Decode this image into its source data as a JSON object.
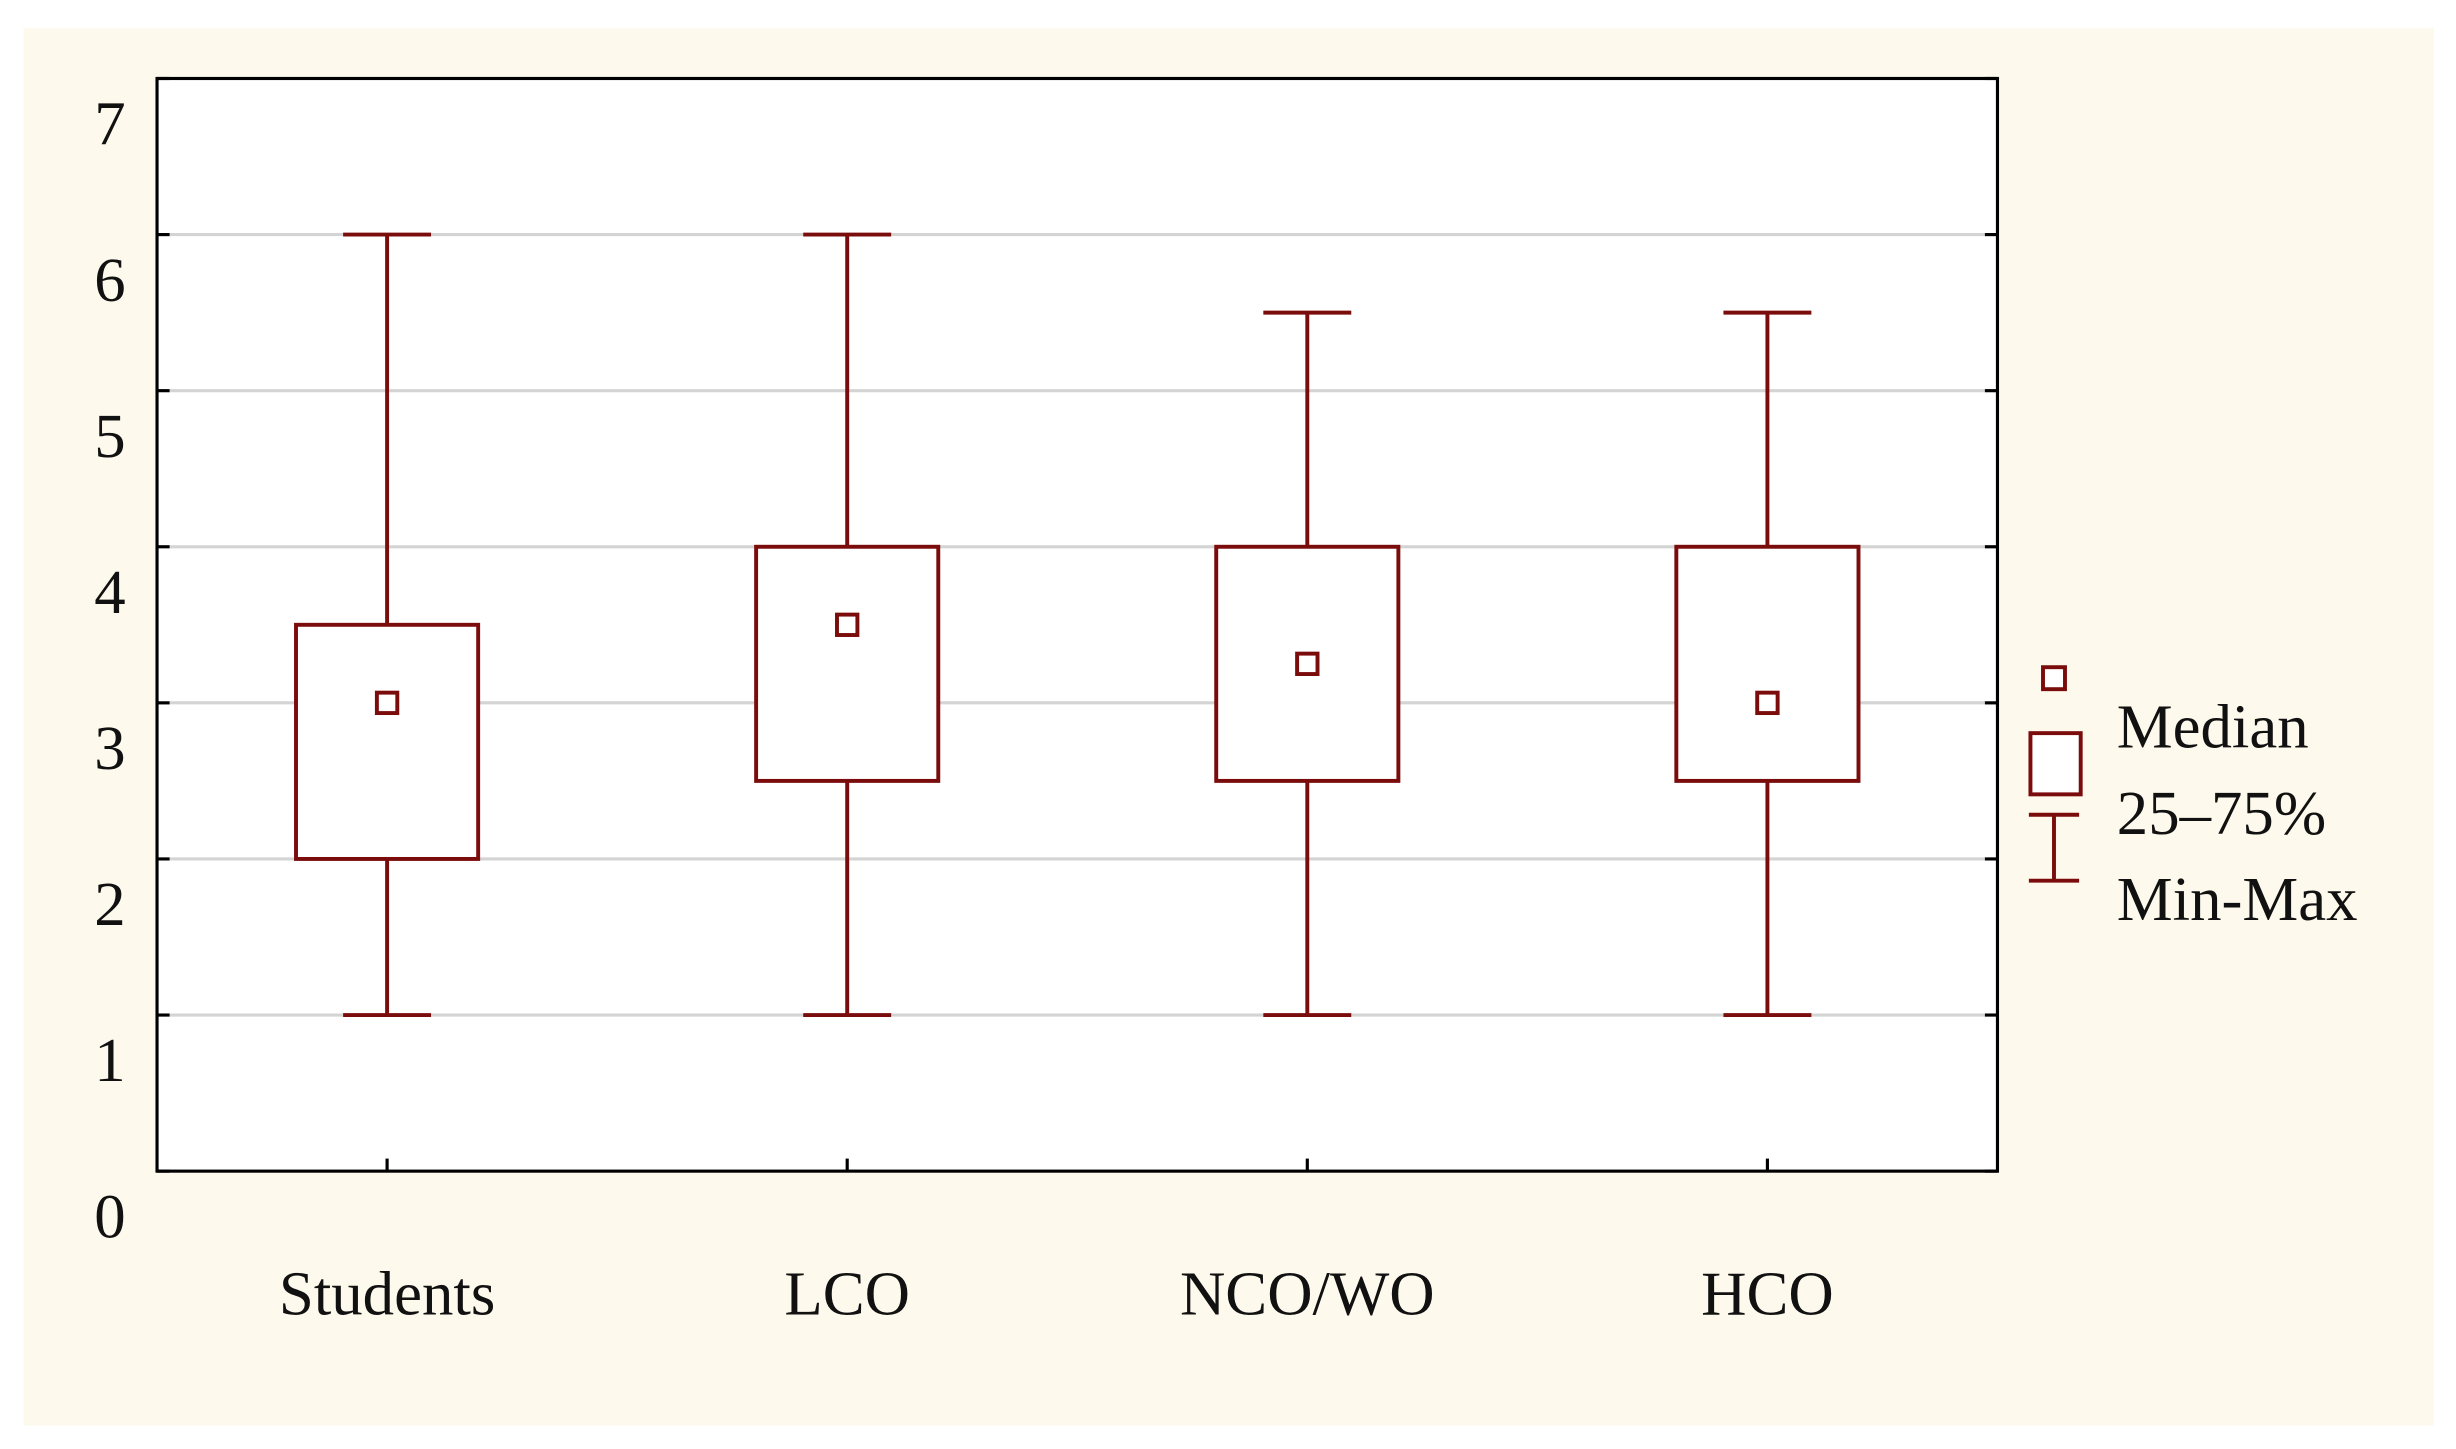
{
  "chart_data": {
    "type": "box",
    "categories": [
      "Students",
      "LCO",
      "NCO/WO",
      "HCO"
    ],
    "min": [
      1,
      1,
      1,
      1
    ],
    "q1": [
      2,
      2.5,
      2.5,
      2.5
    ],
    "median": [
      3,
      3.5,
      3.25,
      3
    ],
    "q3": [
      3.5,
      4,
      4,
      4
    ],
    "max": [
      6,
      6,
      5.5,
      5.5
    ],
    "color": "#7b0c0c",
    "ylim": [
      0,
      7
    ],
    "yticks": [
      0,
      1,
      2,
      3,
      4,
      5,
      6,
      7
    ],
    "grid": true,
    "legend": {
      "median": "Median",
      "box": "25–75%",
      "whisker": "Min-Max"
    }
  }
}
